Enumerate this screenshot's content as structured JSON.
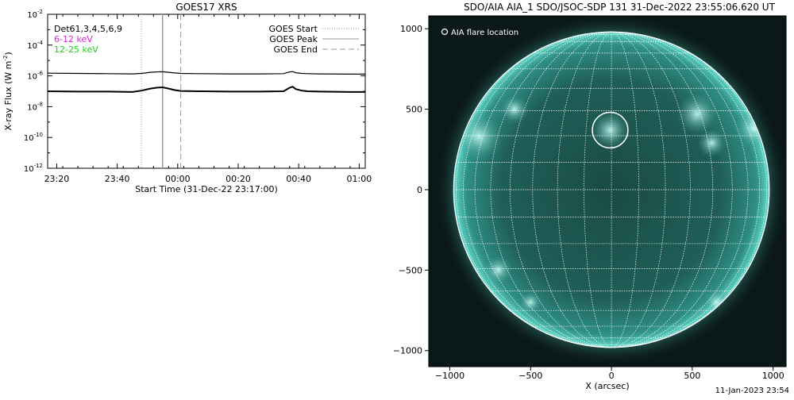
{
  "footer_timestamp": "11-Jan-2023 23:54",
  "chart_data": [
    {
      "type": "line",
      "title": "GOES17 XRS",
      "ylabel": "X-ray Flux (W m",
      "ylabel_exponent": "-2",
      "ylabel_suffix": ")",
      "xlabel": "Start Time (31-Dec-22 23:17:00)",
      "y_scale": "log",
      "ylim": [
        1e-12,
        0.01
      ],
      "y_ticks": [
        {
          "value": 1e-12,
          "base": "10",
          "exp": "-12"
        },
        {
          "value": 1e-10,
          "base": "10",
          "exp": "-10"
        },
        {
          "value": 1e-08,
          "base": "10",
          "exp": "-8"
        },
        {
          "value": 1e-06,
          "base": "10",
          "exp": "-6"
        },
        {
          "value": 0.0001,
          "base": "10",
          "exp": "-4"
        },
        {
          "value": 0.01,
          "base": "10",
          "exp": "-2"
        }
      ],
      "xlim_minutes": [
        0,
        105
      ],
      "x_ticks": [
        {
          "minute": 3,
          "label": "23:20"
        },
        {
          "minute": 23,
          "label": "23:40"
        },
        {
          "minute": 43,
          "label": "00:00"
        },
        {
          "minute": 63,
          "label": "00:20"
        },
        {
          "minute": 83,
          "label": "00:40"
        },
        {
          "minute": 103,
          "label": "01:00"
        }
      ],
      "detectors_label": "Det61,3,4,5,6,9",
      "energy_legend": [
        {
          "label": "6-12 keV",
          "color": "#e020e0"
        },
        {
          "label": "12-25 keV",
          "color": "#20d020"
        }
      ],
      "event_legend": [
        {
          "label": "GOES Start",
          "style": "dotted",
          "color": "#9a9a9a"
        },
        {
          "label": "GOES Peak",
          "style": "solid",
          "color": "#9a9a9a"
        },
        {
          "label": "GOES End",
          "style": "dashed",
          "color": "#9a9a9a"
        }
      ],
      "events": {
        "start_minute": 31,
        "peak_minute": 38,
        "end_minute": 44
      },
      "series": [
        {
          "name": "",
          "color": "#000000",
          "x": [
            0,
            10,
            20,
            28,
            31,
            34,
            36,
            38,
            40,
            42,
            44,
            50,
            60,
            70,
            78,
            80,
            81,
            82,
            84,
            86,
            90,
            100,
            105
          ],
          "y": [
            1.5e-06,
            1.45e-06,
            1.4e-06,
            1.35e-06,
            1.45e-06,
            1.7e-06,
            1.8e-06,
            1.85e-06,
            1.7e-06,
            1.55e-06,
            1.45e-06,
            1.4e-06,
            1.35e-06,
            1.35e-06,
            1.4e-06,
            1.8e-06,
            1.9e-06,
            1.6e-06,
            1.45e-06,
            1.4e-06,
            1.35e-06,
            1.3e-06,
            1.3e-06
          ]
        },
        {
          "name": "",
          "color": "#000000",
          "x": [
            0,
            10,
            20,
            28,
            31,
            34,
            36,
            38,
            40,
            42,
            44,
            50,
            60,
            70,
            78,
            80,
            81,
            82,
            84,
            86,
            90,
            100,
            105
          ],
          "y": [
            1e-07,
            9.5e-08,
            9.5e-08,
            9e-08,
            1.1e-07,
            1.5e-07,
            1.7e-07,
            1.8e-07,
            1.5e-07,
            1.2e-07,
            1.05e-07,
            1e-07,
            9.5e-08,
            9.5e-08,
            1e-07,
            1.7e-07,
            2e-07,
            1.4e-07,
            1.1e-07,
            1e-07,
            9.5e-08,
            9e-08,
            9e-08
          ]
        }
      ]
    },
    {
      "type": "image",
      "title": "SDO/AIA AIA_1 SDO/JSOC-SDP 131 31-Dec-2022 23:55:06.620 UT",
      "xlabel": "X (arcsec)",
      "ylabel": "",
      "xlim": [
        -1130,
        1080
      ],
      "ylim": [
        -1100,
        1080
      ],
      "x_ticks": [
        -1000,
        -500,
        0,
        500,
        1000
      ],
      "y_ticks": [
        -1000,
        -500,
        0,
        500,
        1000
      ],
      "x_tick_labels": [
        "−1000",
        "−500",
        "0",
        "500",
        "1000"
      ],
      "y_tick_labels": [
        "−1000",
        "−500",
        "0",
        "500",
        "1000"
      ],
      "solar_radius_arcsec": 976,
      "grid_spacing_deg": 10,
      "legend_label": "AIA flare location",
      "flare_marker": {
        "x": -8,
        "y": 370,
        "radius": 110
      }
    }
  ]
}
